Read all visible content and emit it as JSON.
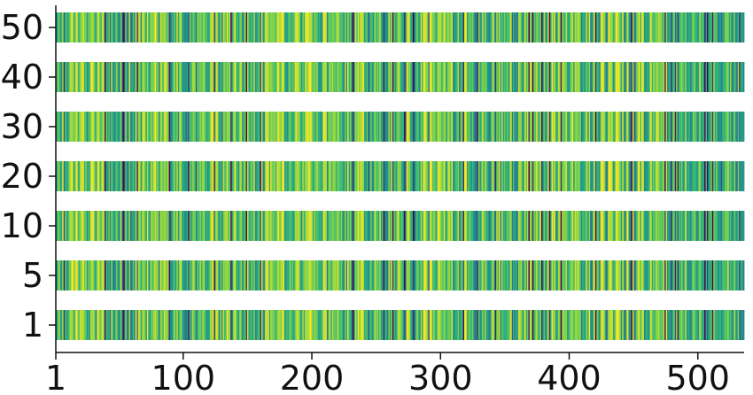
{
  "chart_data": {
    "type": "heatmap",
    "title": "",
    "xlabel": "",
    "ylabel": "",
    "x_range": [
      1,
      536
    ],
    "x_ticks": [
      {
        "value": 1,
        "label": "1"
      },
      {
        "value": 100,
        "label": "100"
      },
      {
        "value": 200,
        "label": "200"
      },
      {
        "value": 300,
        "label": "300"
      },
      {
        "value": 400,
        "label": "400"
      },
      {
        "value": 500,
        "label": "500"
      }
    ],
    "rows": [
      {
        "label": "50",
        "value": 50
      },
      {
        "label": "40",
        "value": 40
      },
      {
        "label": "30",
        "value": 30
      },
      {
        "label": "20",
        "value": 20
      },
      {
        "label": "10",
        "value": 10
      },
      {
        "label": "5",
        "value": 5
      },
      {
        "label": "1",
        "value": 1
      }
    ],
    "num_columns": 536,
    "colormap": [
      "#440154",
      "#31688e",
      "#21918c",
      "#35b779",
      "#90d743",
      "#fde725"
    ],
    "seed": 20240521,
    "row_variation": 0.12
  }
}
